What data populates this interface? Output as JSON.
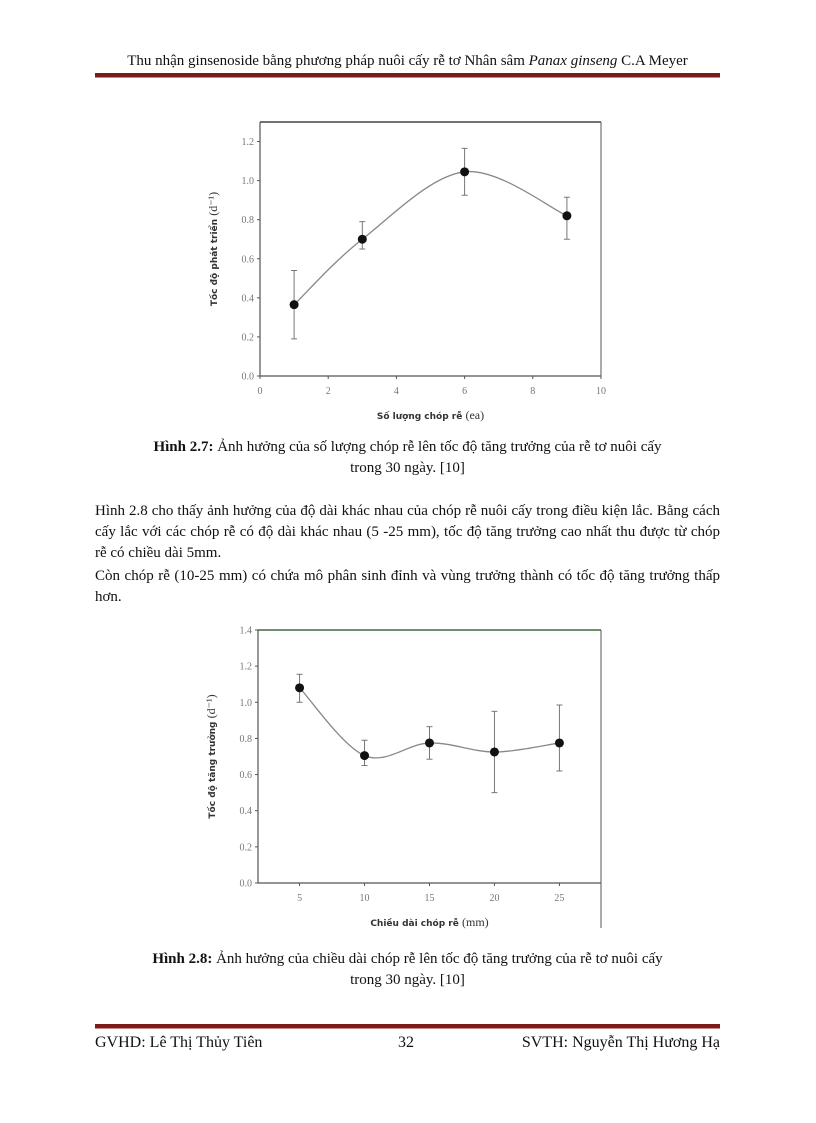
{
  "header": {
    "title_pre": "Thu nhận ginsenoside  bằng phương pháp nuôi  cấy rễ tơ Nhân sâm ",
    "title_italic": "Panax ginseng",
    "title_post": " C.A Meyer"
  },
  "figure1": {
    "caption_label": "Hình 2.7:",
    "caption_text": " Ảnh hưởng của số lượng chóp rễ lên tốc độ tăng trưởng của rễ tơ nuôi cấy",
    "caption_line2": "trong 30 ngày. [10]"
  },
  "paragraph": {
    "p1": "Hình 2.8 cho thấy ảnh hưởng của độ dài khác nhau của chóp rễ nuôi cấy trong điều kiện lắc. Bằng cách cấy lắc với các chóp rễ có độ dài khác nhau (5 -25 mm), tốc độ tăng trưởng cao nhất thu được từ chóp rễ có chiều dài 5mm.",
    "p2": "Còn chóp rễ (10-25 mm) có chứa mô phân sinh đỉnh và vùng trưởng thành có tốc độ tăng trưởng thấp hơn."
  },
  "figure2": {
    "caption_label": "Hình 2.8:",
    "caption_text": " Ảnh hưởng của chiều dài chóp rễ lên tốc độ tăng trưởng của rễ tơ nuôi cấy",
    "caption_line2": "trong 30 ngày. [10]"
  },
  "footer": {
    "advisor": "GVHD: Lê Thị Thủy Tiên",
    "page_number": "32",
    "student": "SVTH:  Nguyễn Thị Hương Hạ"
  },
  "chart_data": [
    {
      "type": "line",
      "xlabel": "Số lượng chóp rễ",
      "xunit": "(ea)",
      "ylabel": "Tốc độ phát triển",
      "yunit": "(d⁻¹)",
      "xlim": [
        0,
        10
      ],
      "ylim": [
        0,
        1.3
      ],
      "xticks": [
        "0",
        "2",
        "4",
        "6",
        "8",
        "10"
      ],
      "xtick_values": [
        0,
        2,
        4,
        6,
        8,
        10
      ],
      "yticks": [
        "0.0",
        "0.2",
        "0.4",
        "0.6",
        "0.8",
        "1.0",
        "1.2"
      ],
      "ytick_values": [
        0,
        0.2,
        0.4,
        0.6,
        0.8,
        1.0,
        1.2
      ],
      "x": [
        1,
        3,
        6,
        9
      ],
      "y": [
        0.365,
        0.7,
        1.045,
        0.82
      ],
      "err_low": [
        0.19,
        0.65,
        0.925,
        0.7
      ],
      "err_high": [
        0.54,
        0.79,
        1.165,
        0.915
      ],
      "grid": false,
      "smooth": true
    },
    {
      "type": "line",
      "xlabel": "Chiều dài chóp rễ",
      "xunit": "(mm)",
      "ylabel": "Tốc độ tăng trưởng",
      "yunit": "(d⁻¹)",
      "xlim": [
        1.8,
        28.2
      ],
      "ylim": [
        0,
        1.4
      ],
      "xticks": [
        "5",
        "10",
        "15",
        "20",
        "25"
      ],
      "xtick_values": [
        5,
        10,
        15,
        20,
        25
      ],
      "yticks": [
        "0.0",
        "0.2",
        "0.4",
        "0.6",
        "0.8",
        "1.0",
        "1.2",
        "1.4"
      ],
      "ytick_values": [
        0,
        0.2,
        0.4,
        0.6,
        0.8,
        1.0,
        1.2,
        1.4
      ],
      "x": [
        5,
        10,
        15,
        20,
        25
      ],
      "y": [
        1.08,
        0.705,
        0.775,
        0.725,
        0.775
      ],
      "err_low": [
        1.0,
        0.65,
        0.685,
        0.5,
        0.62
      ],
      "err_high": [
        1.155,
        0.79,
        0.865,
        0.95,
        0.985
      ],
      "grid": false,
      "smooth": true,
      "top_border_color": "#3a6b3a"
    }
  ],
  "colors": {
    "rule": "#7a1a1a",
    "marker": "#111111",
    "line": "#888888"
  }
}
